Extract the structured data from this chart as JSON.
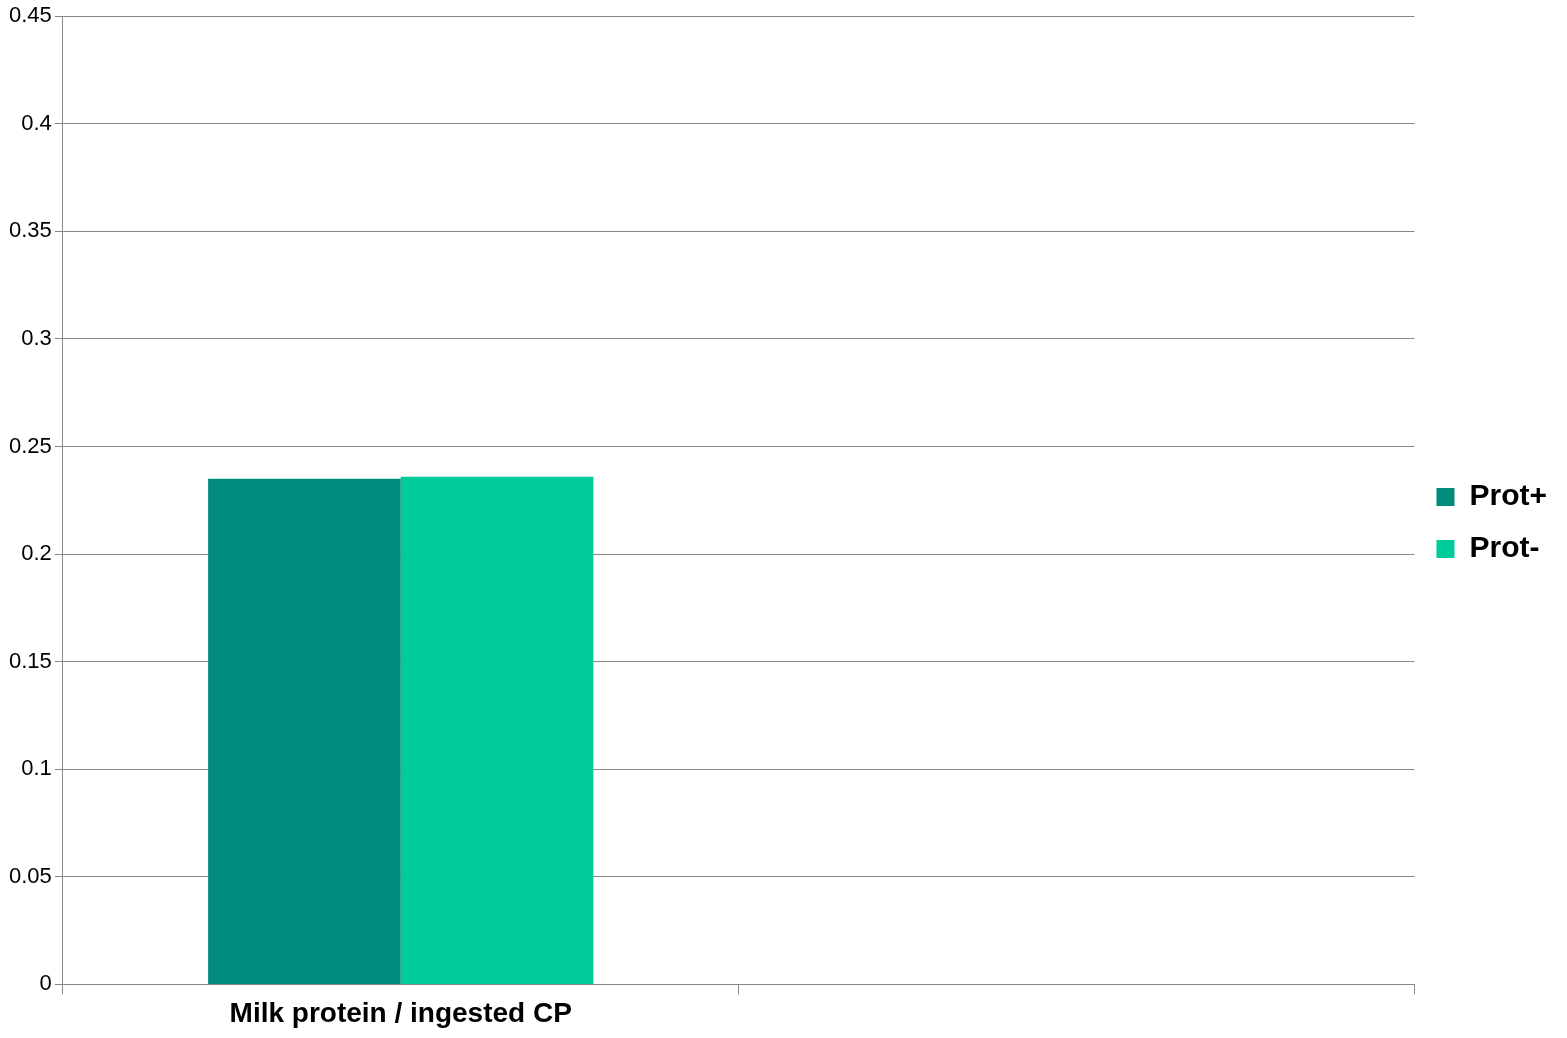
{
  "chart_data": {
    "type": "bar",
    "categories": [
      "Milk protein / ingested CP",
      null
    ],
    "series": [
      {
        "name": "Prot+",
        "color": "#008b7c",
        "values": [
          0.235,
          null
        ]
      },
      {
        "name": "Prot-",
        "color": "#00cc99",
        "values": [
          0.236,
          null
        ]
      }
    ],
    "ylim": [
      0,
      0.45
    ],
    "yticks": [
      0,
      0.05,
      0.1,
      0.15,
      0.2,
      0.25,
      0.3,
      0.35,
      0.4,
      0.45
    ],
    "grid": "y",
    "legend": "right"
  }
}
